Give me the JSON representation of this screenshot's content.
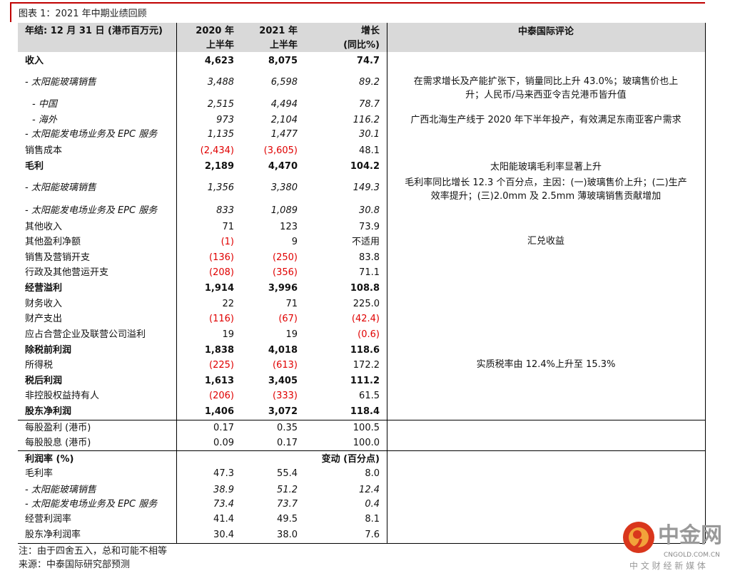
{
  "title": "图表 1：2021 年中期业绩回顾",
  "header": {
    "label": "年结: 12 月 31 日 (港币百万元)",
    "col1": [
      "2020 年",
      "上半年"
    ],
    "col2": [
      "2021 年",
      "上半年"
    ],
    "col3": [
      "增长",
      "(同比%)"
    ],
    "comment": "中泰国际评论"
  },
  "rows": [
    {
      "label": "收入",
      "v": [
        "4,623",
        "8,075",
        "74.7"
      ],
      "style": "b"
    },
    {
      "label": "- 太阳能玻璃销售",
      "v": [
        "3,488",
        "6,598",
        "89.2"
      ],
      "style": "i"
    },
    {
      "label": "  - 中国",
      "v": [
        "2,515",
        "4,494",
        "78.7"
      ],
      "style": "i"
    },
    {
      "label": "  - 海外",
      "v": [
        "973",
        "2,104",
        "116.2"
      ],
      "style": "i"
    },
    {
      "label": "- 太阳能发电场业务及 EPC 服务",
      "v": [
        "1,135",
        "1,477",
        "30.1"
      ],
      "style": "i"
    },
    {
      "label": "销售成本",
      "v": [
        "(2,434)",
        "(3,605)",
        "48.1"
      ],
      "style": ""
    },
    {
      "label": "毛利",
      "v": [
        "2,189",
        "4,470",
        "104.2"
      ],
      "style": "b"
    },
    {
      "label": "- 太阳能玻璃销售",
      "v": [
        "1,356",
        "3,380",
        "149.3"
      ],
      "style": "i"
    },
    {
      "label": "- 太阳能发电场业务及 EPC 服务",
      "v": [
        "833",
        "1,089",
        "30.8"
      ],
      "style": "i"
    },
    {
      "label": "其他收入",
      "v": [
        "71",
        "123",
        "73.9"
      ],
      "style": ""
    },
    {
      "label": "其他盈利净额",
      "v": [
        "(1)",
        "9",
        "不适用"
      ],
      "style": ""
    },
    {
      "label": "销售及营销开支",
      "v": [
        "(136)",
        "(250)",
        "83.8"
      ],
      "style": ""
    },
    {
      "label": "行政及其他营运开支",
      "v": [
        "(208)",
        "(356)",
        "71.1"
      ],
      "style": ""
    },
    {
      "label": "经营溢利",
      "v": [
        "1,914",
        "3,996",
        "108.8"
      ],
      "style": "b"
    },
    {
      "label": "财务收入",
      "v": [
        "22",
        "71",
        "225.0"
      ],
      "style": ""
    },
    {
      "label": "财产支出",
      "v": [
        "(116)",
        "(67)",
        "(42.4)"
      ],
      "style": ""
    },
    {
      "label": "应占合营企业及联营公司溢利",
      "v": [
        "19",
        "19",
        "(0.6)"
      ],
      "style": ""
    },
    {
      "label": "除税前利润",
      "v": [
        "1,838",
        "4,018",
        "118.6"
      ],
      "style": "b"
    },
    {
      "label": "所得税",
      "v": [
        "(225)",
        "(613)",
        "172.2"
      ],
      "style": ""
    },
    {
      "label": "税后利润",
      "v": [
        "1,613",
        "3,405",
        "111.2"
      ],
      "style": "b"
    },
    {
      "label": "非控股权益持有人",
      "v": [
        "(206)",
        "(333)",
        "61.5"
      ],
      "style": ""
    },
    {
      "label": "股东净利润",
      "v": [
        "1,406",
        "3,072",
        "118.4"
      ],
      "style": "b"
    },
    {
      "label": "每股盈利 (港币)",
      "v": [
        "0.17",
        "0.35",
        "100.5"
      ],
      "style": ""
    },
    {
      "label": "每股股息 (港币)",
      "v": [
        "0.09",
        "0.17",
        "100.0"
      ],
      "style": ""
    },
    {
      "label": "利润率 (%)",
      "v": [
        "",
        "",
        "变动 (百分点)"
      ],
      "style": "b"
    },
    {
      "label": "毛利率",
      "v": [
        "47.3",
        "55.4",
        "8.0"
      ],
      "style": ""
    },
    {
      "label": "- 太阳能玻璃销售",
      "v": [
        "38.9",
        "51.2",
        "12.4"
      ],
      "style": "i"
    },
    {
      "label": "- 太阳能发电场业务及 EPC 服务",
      "v": [
        "73.4",
        "73.7",
        "0.4"
      ],
      "style": "i"
    },
    {
      "label": "经营利润率",
      "v": [
        "41.4",
        "49.5",
        "8.1"
      ],
      "style": ""
    },
    {
      "label": "股东净利润率",
      "v": [
        "30.4",
        "38.0",
        "7.6"
      ],
      "style": ""
    }
  ],
  "comments": [
    [
      "在需求增长及产能扩张下，销量同比上升 43.0%；玻璃售价也上",
      "升；人民币/马来西亚令吉兑港币皆升值"
    ],
    [
      "广西北海生产线于 2020 年下半年投产，有效满足东南亚客户需求"
    ],
    [
      "太阳能玻璃毛利率显著上升"
    ],
    [
      "毛利率同比增长 12.3 个百分点，主因：(一)玻璃售价上升；(二)生产",
      "效率提升；(三)2.0mm 及 2.5mm 薄玻璃销售贡献增加"
    ],
    [
      "汇兑收益"
    ],
    [
      "实质税率由 12.4%上升至 15.3%"
    ]
  ],
  "notes": [
    "注：由于四舍五入，总和可能不相等",
    "来源：中泰国际研究部预测"
  ],
  "negative_color": "#e00000",
  "logo": {
    "text": "中金网",
    "domain": "CNGOLD.COM.CN",
    "tagline": "中 文 财 经 新 媒 体"
  }
}
